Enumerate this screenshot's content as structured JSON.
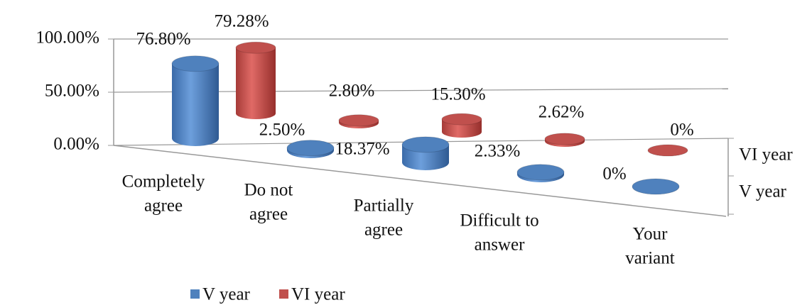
{
  "chart_data": {
    "type": "bar3d",
    "categories": [
      [
        "Completely",
        "agree"
      ],
      [
        "Do not",
        "agree"
      ],
      [
        "Partially",
        "agree"
      ],
      [
        "Difficult to",
        "answer"
      ],
      [
        "Your",
        "variant"
      ]
    ],
    "series": [
      {
        "name": "V year",
        "color": "#4f81bd",
        "values": [
          76.8,
          2.5,
          18.37,
          2.33,
          0
        ],
        "value_labels": [
          "76.80%",
          "2.50%",
          "18.37%",
          "2.33%",
          "0%"
        ]
      },
      {
        "name": "VI year",
        "color": "#c0504d",
        "values": [
          79.28,
          2.8,
          15.3,
          2.62,
          0
        ],
        "value_labels": [
          "79.28%",
          "2.80%",
          "15.30%",
          "2.62%",
          "0%"
        ]
      }
    ],
    "ylim": [
      0,
      100
    ],
    "yticks": [
      {
        "value": 0,
        "label": "0.00%"
      },
      {
        "value": 50,
        "label": "50.00%"
      },
      {
        "value": 100,
        "label": "100.00%"
      }
    ],
    "grid": true,
    "legend": "bottom"
  }
}
